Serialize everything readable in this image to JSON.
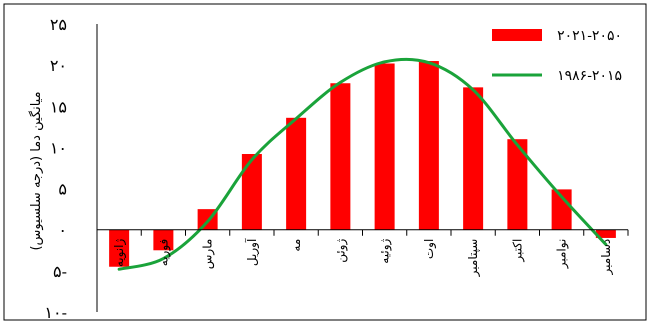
{
  "chart_data": {
    "type": "bar",
    "ylabel": "میانگین دما (درجه سلسیوس)",
    "ylim": [
      -10,
      25
    ],
    "yticks": [
      25,
      20,
      15,
      10,
      5,
      0,
      -5,
      -10
    ],
    "ytick_labels": [
      "۲۵",
      "۲۰",
      "۱۵",
      "۱۰",
      "۵",
      "۰",
      "۵-",
      "۱۰-"
    ],
    "categories": [
      "ژانویه",
      "فوریه",
      "مارس",
      "آوریل",
      "مه",
      "ژوئن",
      "ژوئیه",
      "اوت",
      "سپتامبر",
      "اکتبر",
      "نوامبر",
      "دسامبر"
    ],
    "series": [
      {
        "name": "۲۰۲۱-۲۰۵۰",
        "kind": "bar",
        "color": "#ff0000",
        "values": [
          -4.5,
          -2.5,
          2.5,
          9.2,
          13.6,
          17.8,
          20.2,
          20.5,
          17.3,
          11.0,
          4.9,
          -1.0
        ]
      },
      {
        "name": "۱۹۸۶-۲۰۱۵",
        "kind": "line",
        "color": "#1aa33a",
        "values": [
          -4.8,
          -3.5,
          1.0,
          8.5,
          13.5,
          17.9,
          20.4,
          20.3,
          17.0,
          10.3,
          4.0,
          -1.8
        ]
      }
    ],
    "legend_position": "top-right",
    "grid": false
  }
}
